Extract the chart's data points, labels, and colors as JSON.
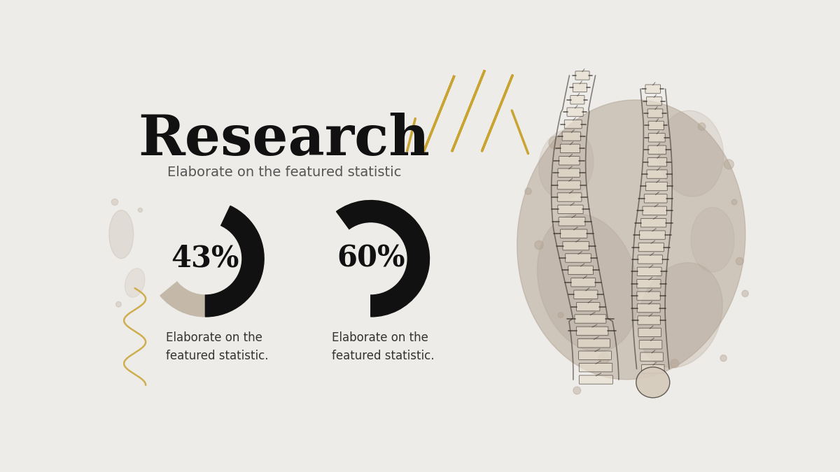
{
  "bg_color": "#eeece8",
  "title": "Research",
  "subtitle": "Elaborate on the featured statistic",
  "title_color": "#111111",
  "subtitle_color": "#555555",
  "donut1_value": 43,
  "donut2_value": 60,
  "donut_label1": "43%",
  "donut_label2": "60%",
  "donut_active_color": "#111111",
  "donut_inactive_color": "#c4b9a8",
  "caption1": "Elaborate on the\nfeatured statistic.",
  "caption2": "Elaborate on the\nfeatured statistic.",
  "caption_color": "#333333",
  "gold_color": "#c9a433",
  "splatter_color": "#b0a090"
}
